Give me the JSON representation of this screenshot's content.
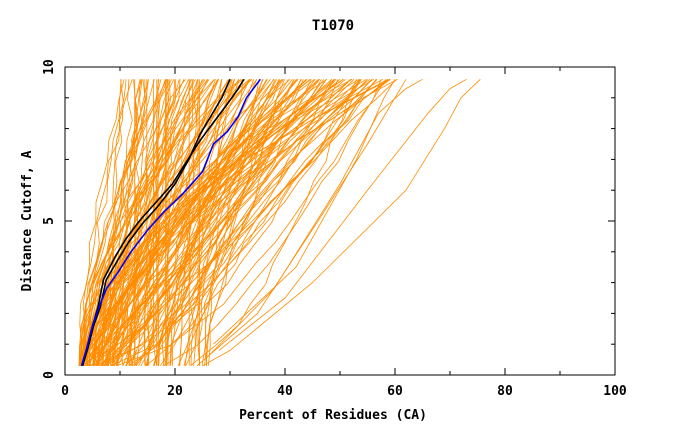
{
  "chart_data": {
    "type": "line",
    "title": "T1070",
    "xlabel": "Percent of Residues (CA)",
    "ylabel": "Distance Cutoff, A",
    "xlim": [
      0,
      100
    ],
    "ylim": [
      0,
      10
    ],
    "x_ticks": [
      "0",
      "20",
      "40",
      "60",
      "80",
      "100"
    ],
    "y_ticks": [
      "0",
      "5",
      "10"
    ],
    "grid": false,
    "legend": "none",
    "colors": {
      "bundle": "#ff8c00",
      "highlight_black": "#000000",
      "highlight_blue": "#0000ff",
      "frame": "#000000"
    },
    "series": [
      {
        "color": "#000000",
        "points": [
          [
            3.2,
            0.3
          ],
          [
            4.2,
            0.9
          ],
          [
            5.2,
            1.6
          ],
          [
            6.4,
            2.2
          ],
          [
            7.5,
            3.1
          ],
          [
            9.5,
            3.7
          ],
          [
            11.5,
            4.3
          ],
          [
            14,
            4.9
          ],
          [
            17,
            5.5
          ],
          [
            20,
            6.2
          ],
          [
            22.5,
            7.0
          ],
          [
            24.5,
            7.8
          ],
          [
            26.5,
            8.4
          ],
          [
            28.5,
            9.0
          ],
          [
            30,
            9.6
          ]
        ]
      },
      {
        "color": "#000000",
        "points": [
          [
            3.2,
            0.3
          ],
          [
            4.0,
            0.9
          ],
          [
            5.0,
            1.6
          ],
          [
            6.0,
            2.2
          ],
          [
            7.0,
            3.1
          ],
          [
            9.0,
            3.8
          ],
          [
            11.0,
            4.4
          ],
          [
            13.5,
            5.0
          ],
          [
            16.5,
            5.6
          ],
          [
            19.5,
            6.2
          ],
          [
            22,
            6.9
          ],
          [
            24.5,
            7.6
          ],
          [
            27,
            8.2
          ],
          [
            29.5,
            8.8
          ],
          [
            31.5,
            9.3
          ],
          [
            32.5,
            9.6
          ]
        ]
      },
      {
        "color": "#0000ff",
        "points": [
          [
            3.0,
            0.3
          ],
          [
            4.0,
            0.9
          ],
          [
            5.0,
            1.6
          ],
          [
            6.2,
            2.2
          ],
          [
            7.5,
            2.8
          ],
          [
            9.5,
            3.3
          ],
          [
            12,
            4.0
          ],
          [
            15,
            4.7
          ],
          [
            18,
            5.3
          ],
          [
            21.5,
            5.9
          ],
          [
            25,
            6.6
          ],
          [
            27,
            7.5
          ],
          [
            29.5,
            7.9
          ],
          [
            31.5,
            8.4
          ],
          [
            33,
            9.0
          ],
          [
            35.5,
            9.6
          ]
        ]
      }
    ],
    "bundle": {
      "count": 170,
      "seed": 1070,
      "start_x": [
        2.5,
        26
      ],
      "top_x": [
        10,
        60
      ],
      "y_max": 9.6,
      "outliers": [
        {
          "points": [
            [
              25,
              0.3
            ],
            [
              30,
              0.8
            ],
            [
              45,
              3.0
            ],
            [
              62,
              6.0
            ],
            [
              69,
              8.0
            ],
            [
              72,
              9.0
            ],
            [
              75.5,
              9.6
            ]
          ]
        },
        {
          "points": [
            [
              28,
              0.8
            ],
            [
              40,
              2.5
            ],
            [
              55,
              6.0
            ],
            [
              66,
              8.5
            ],
            [
              70,
              9.3
            ],
            [
              73,
              9.6
            ]
          ]
        },
        {
          "points": [
            [
              26,
              0.6
            ],
            [
              38,
              2.8
            ],
            [
              50,
              6.2
            ],
            [
              57,
              8.5
            ],
            [
              62,
              9.3
            ],
            [
              65,
              9.6
            ]
          ]
        },
        {
          "points": [
            [
              24,
              0.3
            ],
            [
              35,
              2.0
            ],
            [
              46,
              5.0
            ],
            [
              55,
              7.5
            ],
            [
              62,
              9.6
            ]
          ]
        },
        {
          "points": [
            [
              27,
              1.0
            ],
            [
              42,
              3.5
            ],
            [
              53,
              7.0
            ],
            [
              58,
              9.0
            ],
            [
              60,
              9.6
            ]
          ]
        }
      ]
    }
  }
}
